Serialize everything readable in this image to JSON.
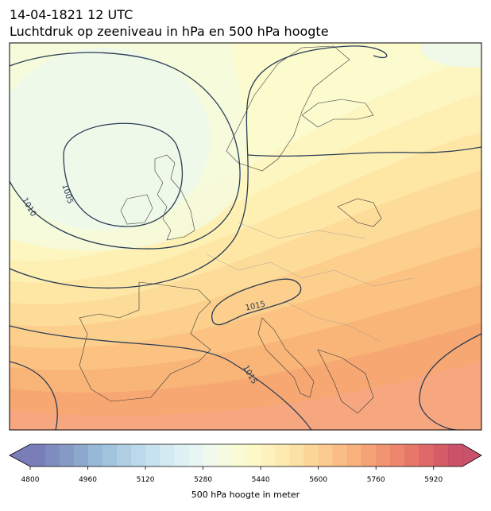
{
  "header": {
    "title_line1": "14-04-1821 12 UTC",
    "title_line2": "Luchtdruk op zeeniveau in hPa en 500 hPa hoogte"
  },
  "map": {
    "contour_labels": [
      1005,
      1010,
      1015,
      1015
    ]
  },
  "colorbar": {
    "label": "500 hPa hoogte in meter",
    "range": [
      4800,
      6000
    ],
    "ticks": [
      4800,
      4960,
      5120,
      5280,
      5440,
      5600,
      5760,
      5920
    ],
    "colors": [
      "#6b70b0",
      "#7180b8",
      "#7890c0",
      "#80a0c8",
      "#8cb0d2",
      "#98bdd9",
      "#a6c9e1",
      "#b3d5e8",
      "#c1dfed",
      "#cfe8f1",
      "#dbeff3",
      "#e5f4f1",
      "#eef8ea",
      "#f4fadd",
      "#fafbd0",
      "#fdf7c2",
      "#fef0b5",
      "#fee7a7",
      "#fddd9a",
      "#fcd18e",
      "#fbc482",
      "#f9b678",
      "#f7a76f",
      "#f49868",
      "#f08962",
      "#eb795d",
      "#e46959",
      "#dc5958",
      "#d14b58",
      "#c43f5a"
    ]
  }
}
